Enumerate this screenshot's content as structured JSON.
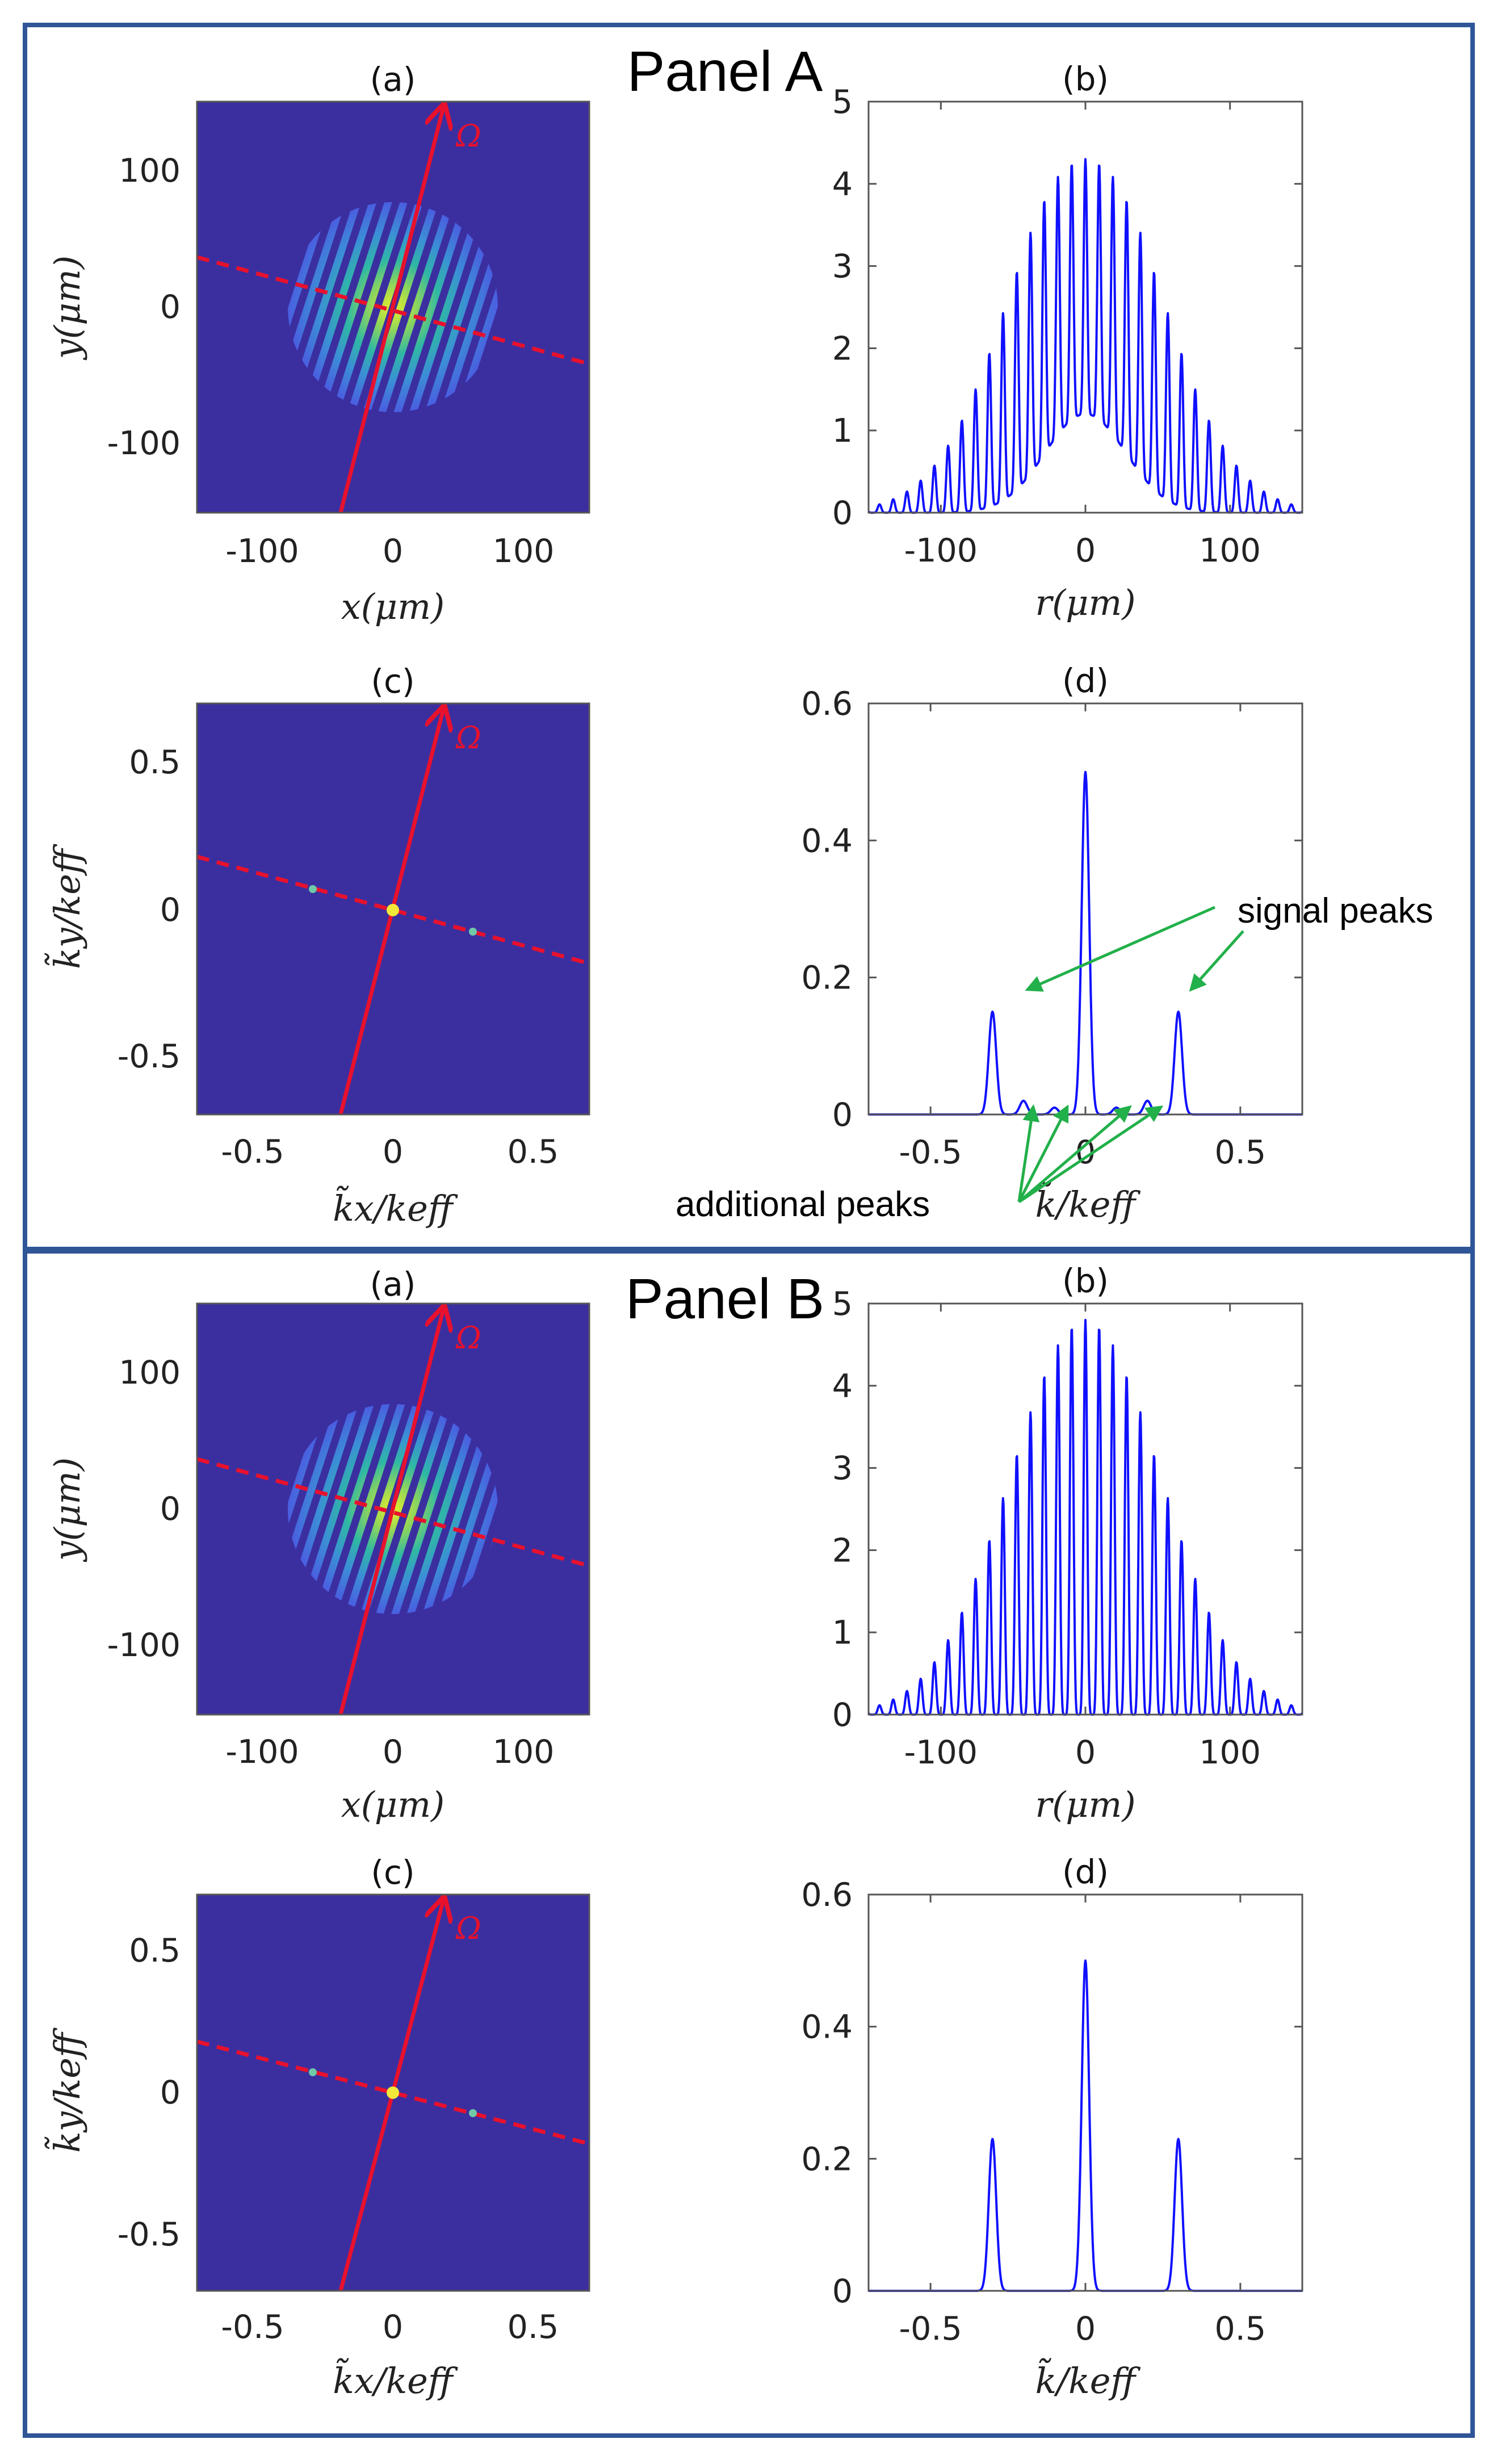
{
  "panels": [
    {
      "title": "Panel A",
      "subplots": {
        "a": {
          "title": "(a)",
          "xlabel": "x(μm)",
          "ylabel": "y(μm)",
          "omega_label": "Ω",
          "xticks": [
            "-100",
            "0",
            "100"
          ],
          "yticks": [
            "100",
            "0",
            "-100"
          ],
          "xlim": [
            -150,
            150
          ],
          "ylim": [
            -150,
            150
          ]
        },
        "c": {
          "title": "(c)",
          "xlabel": "k̃x/keff",
          "ylabel": "k̃y/keff",
          "omega_label": "Ω",
          "xticks": [
            "-0.5",
            "0",
            "0.5"
          ],
          "yticks": [
            "0.5",
            "0",
            "-0.5"
          ],
          "xlim": [
            -0.7,
            0.7
          ],
          "ylim": [
            -0.7,
            0.7
          ]
        }
      },
      "annotations": {
        "signal_peaks": "signal peaks",
        "additional_peaks": "additional peaks"
      }
    },
    {
      "title": "Panel B",
      "subplots": {
        "a": {
          "title": "(a)",
          "xlabel": "x(μm)",
          "ylabel": "y(μm)",
          "omega_label": "Ω",
          "xticks": [
            "-100",
            "0",
            "100"
          ],
          "yticks": [
            "100",
            "0",
            "-100"
          ],
          "xlim": [
            -150,
            150
          ],
          "ylim": [
            -150,
            150
          ]
        },
        "c": {
          "title": "(c)",
          "xlabel": "k̃x/keff",
          "ylabel": "k̃y/keff",
          "omega_label": "Ω",
          "xticks": [
            "-0.5",
            "0",
            "0.5"
          ],
          "yticks": [
            "0.5",
            "0",
            "-0.5"
          ],
          "xlim": [
            -0.7,
            0.7
          ],
          "ylim": [
            -0.7,
            0.7
          ]
        }
      }
    }
  ],
  "colors": {
    "frame": "#2f5597",
    "line": "#1010ff",
    "red": "#e8112d",
    "field": "#3b2fa0",
    "arrow": "#22b04a"
  },
  "chart_data": [
    {
      "panel": "A",
      "id": "b",
      "type": "line",
      "title": "(b)",
      "xlabel": "r(μm)",
      "ylabel": "",
      "xlim": [
        -150,
        150
      ],
      "ylim": [
        0,
        5
      ],
      "xticks": [
        -100,
        0,
        100
      ],
      "yticks": [
        0,
        1,
        2,
        3,
        4,
        5
      ],
      "series": [
        {
          "name": "profile",
          "kind": "fringes",
          "peak": 4.3,
          "envelope_sigma": 52,
          "fringe_period": 9.5,
          "center_value": 1.2,
          "samples": 900
        }
      ]
    },
    {
      "panel": "A",
      "id": "d",
      "type": "line",
      "title": "(d)",
      "xlabel": "k̃/keff",
      "ylabel": "",
      "xlim": [
        -0.7,
        0.7
      ],
      "ylim": [
        0,
        0.6
      ],
      "xticks": [
        -0.5,
        0,
        0.5
      ],
      "yticks": [
        0,
        0.2,
        0.4,
        0.6
      ],
      "series": [
        {
          "name": "spectrum",
          "kind": "peaks",
          "width": 0.012,
          "samples": 900,
          "peaks": [
            {
              "x": -0.3,
              "y": 0.15
            },
            {
              "x": -0.2,
              "y": 0.02
            },
            {
              "x": -0.1,
              "y": 0.01
            },
            {
              "x": 0.0,
              "y": 0.5
            },
            {
              "x": 0.1,
              "y": 0.01
            },
            {
              "x": 0.2,
              "y": 0.02
            },
            {
              "x": 0.3,
              "y": 0.15
            }
          ]
        }
      ]
    },
    {
      "panel": "B",
      "id": "b",
      "type": "line",
      "title": "(b)",
      "xlabel": "r(μm)",
      "ylabel": "",
      "xlim": [
        -150,
        150
      ],
      "ylim": [
        0,
        5
      ],
      "xticks": [
        -100,
        0,
        100
      ],
      "yticks": [
        0,
        1,
        2,
        3,
        4,
        5
      ],
      "series": [
        {
          "name": "profile",
          "kind": "fringes",
          "peak": 4.8,
          "envelope_sigma": 52,
          "fringe_period": 9.5,
          "center_value": 0.0,
          "samples": 900
        }
      ]
    },
    {
      "panel": "B",
      "id": "d",
      "type": "line",
      "title": "(d)",
      "xlabel": "k̃/keff",
      "ylabel": "",
      "xlim": [
        -0.7,
        0.7
      ],
      "ylim": [
        0,
        0.6
      ],
      "xticks": [
        -0.5,
        0,
        0.5
      ],
      "yticks": [
        0,
        0.2,
        0.4,
        0.6
      ],
      "series": [
        {
          "name": "spectrum",
          "kind": "peaks",
          "width": 0.012,
          "samples": 900,
          "peaks": [
            {
              "x": -0.3,
              "y": 0.23
            },
            {
              "x": 0.0,
              "y": 0.5
            },
            {
              "x": 0.3,
              "y": 0.23
            }
          ]
        }
      ]
    }
  ]
}
